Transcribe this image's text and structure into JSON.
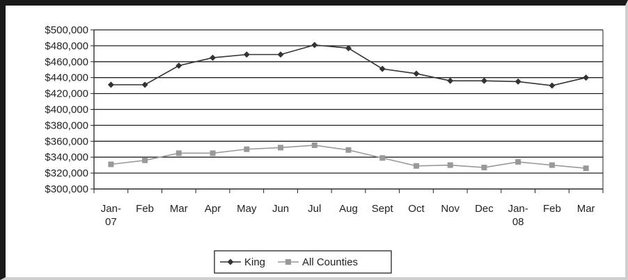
{
  "chart_data": {
    "type": "line",
    "title": "",
    "xlabel": "",
    "ylabel": "",
    "categories": [
      "Jan-07",
      "Feb",
      "Mar",
      "Apr",
      "May",
      "Jun",
      "Jul",
      "Aug",
      "Sept",
      "Oct",
      "Nov",
      "Dec",
      "Jan-08",
      "Feb",
      "Mar"
    ],
    "category_lines": [
      [
        "Jan-",
        "07"
      ],
      [
        "Feb"
      ],
      [
        "Mar"
      ],
      [
        "Apr"
      ],
      [
        "May"
      ],
      [
        "Jun"
      ],
      [
        "Jul"
      ],
      [
        "Aug"
      ],
      [
        "Sept"
      ],
      [
        "Oct"
      ],
      [
        "Nov"
      ],
      [
        "Dec"
      ],
      [
        "Jan-",
        "08"
      ],
      [
        "Feb"
      ],
      [
        "Mar"
      ]
    ],
    "ylim": [
      300000,
      500000
    ],
    "y_ticks": [
      300000,
      320000,
      340000,
      360000,
      380000,
      400000,
      420000,
      440000,
      460000,
      480000,
      500000
    ],
    "y_tick_labels": [
      "$300,000",
      "$320,000",
      "$340,000",
      "$360,000",
      "$380,000",
      "$400,000",
      "$420,000",
      "$440,000",
      "$460,000",
      "$480,000",
      "$500,000"
    ],
    "grid": true,
    "legend_position": "bottom",
    "series": [
      {
        "name": "King",
        "color": "#333333",
        "marker": "diamond",
        "values": [
          431000,
          431000,
          455000,
          465000,
          469000,
          469000,
          481000,
          477000,
          451000,
          445000,
          436000,
          436000,
          435000,
          430000,
          440000
        ]
      },
      {
        "name": "All Counties",
        "color": "#999999",
        "marker": "square",
        "values": [
          331000,
          336000,
          345000,
          345000,
          350000,
          352000,
          355000,
          349000,
          339000,
          329000,
          330000,
          327000,
          334000,
          330000,
          326000
        ]
      }
    ]
  }
}
